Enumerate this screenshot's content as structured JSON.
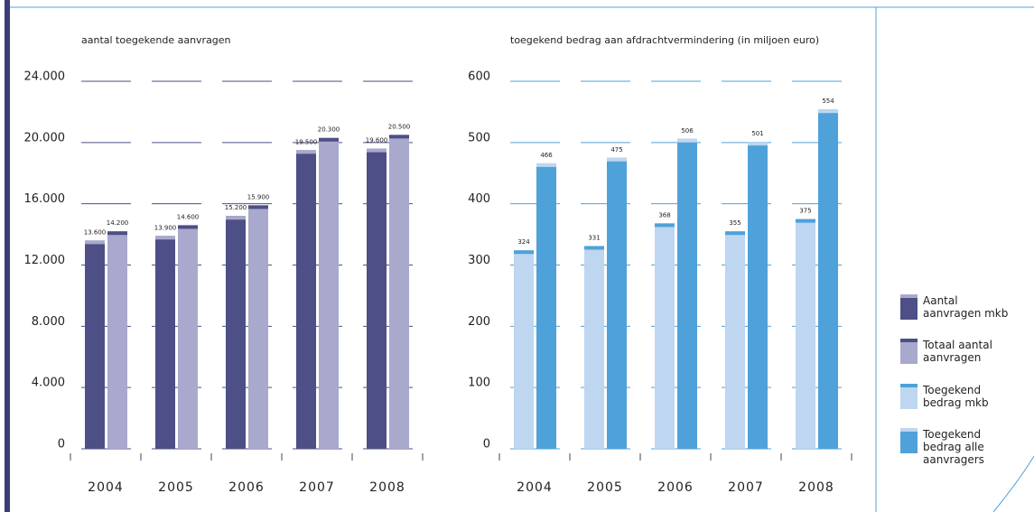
{
  "chart_data": [
    {
      "type": "bar",
      "title": "aantal toegekende aanvragen",
      "categories": [
        "2004",
        "2005",
        "2006",
        "2007",
        "2008"
      ],
      "series": [
        {
          "name": "Aantal aanvragen mkb",
          "color": "#4d4f86",
          "values": [
            13600,
            13900,
            15200,
            19500,
            19600
          ],
          "value_labels": [
            "13.600",
            "13.900",
            "15.200",
            "19.500",
            "19.600"
          ]
        },
        {
          "name": "Totaal aantal aanvragen",
          "color": "#a9a9cd",
          "values": [
            14200,
            14600,
            15900,
            20300,
            20500
          ],
          "value_labels": [
            "14.200",
            "14.600",
            "15.900",
            "20.300",
            "20.500"
          ]
        }
      ],
      "ylim": [
        0,
        24000
      ],
      "yticks": [
        0,
        {
          "value": 4000,
          "label": "4.000"
        },
        {
          "value": 8000,
          "label": "8.000"
        },
        {
          "value": 12000,
          "label": "12.000"
        },
        {
          "value": 16000,
          "label": "16.000"
        },
        {
          "value": 20000,
          "label": "20.000"
        },
        {
          "value": 24000,
          "label": "24.000"
        }
      ],
      "grid": true,
      "grid_color": "#4d4f86"
    },
    {
      "type": "bar",
      "title": "toegekend bedrag aan afdrachtvermindering  (in miljoen euro)",
      "categories": [
        "2004",
        "2005",
        "2006",
        "2007",
        "2008"
      ],
      "series": [
        {
          "name": "Toegekend bedrag mkb",
          "color": "#bed6ef",
          "values": [
            324,
            331,
            368,
            355,
            375
          ]
        },
        {
          "name": "Toegekend bedrag alle aanvragers",
          "color": "#4fa1da",
          "values": [
            466,
            475,
            506,
            501,
            554
          ]
        }
      ],
      "ylim": [
        0,
        600
      ],
      "yticks": [
        0,
        100,
        200,
        300,
        400,
        500,
        600
      ],
      "grid": true,
      "grid_color": "#4fa1da"
    }
  ]
}
